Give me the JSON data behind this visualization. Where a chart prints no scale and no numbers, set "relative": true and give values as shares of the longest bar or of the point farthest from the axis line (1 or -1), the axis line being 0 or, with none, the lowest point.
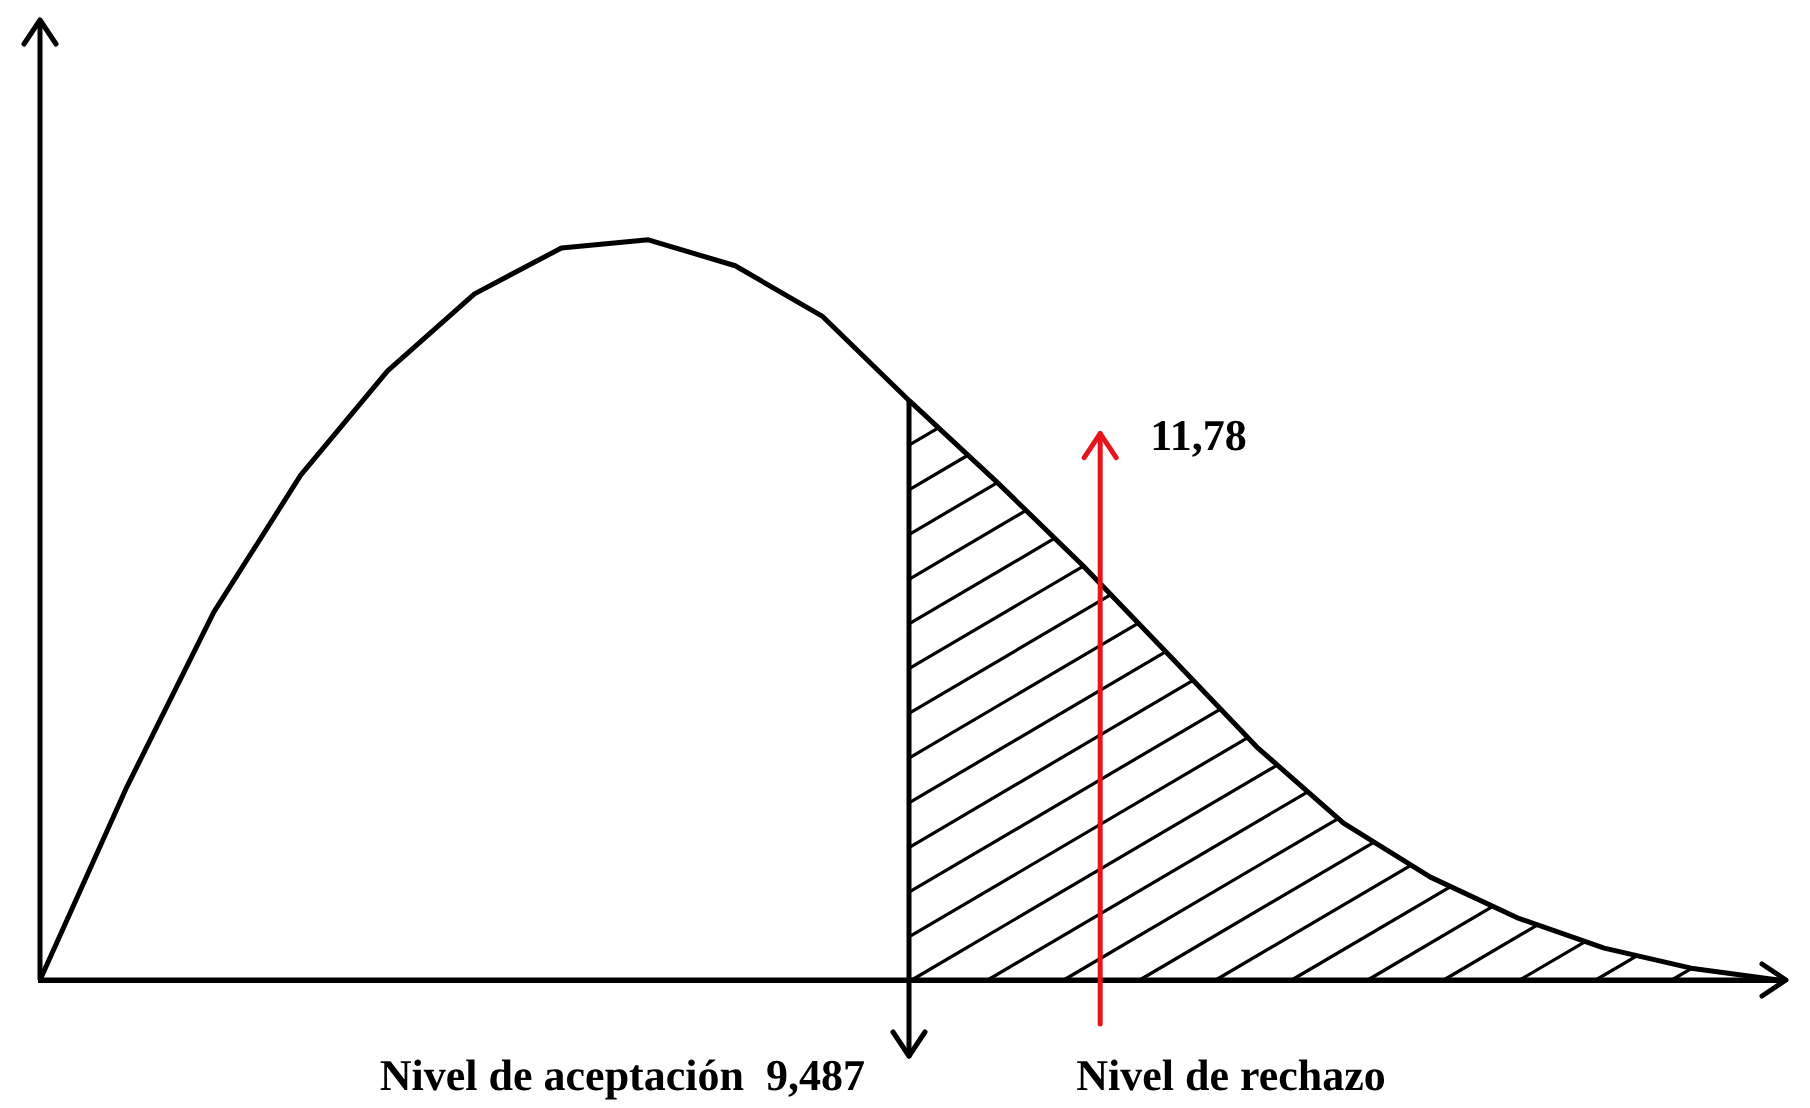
{
  "chart_data": {
    "type": "line",
    "relative": true,
    "tick_labels": false,
    "grid": false,
    "legend": false,
    "marker": "none",
    "line_style": "solid",
    "categories": [
      null,
      null,
      null,
      null,
      null,
      null,
      null,
      null,
      null,
      null,
      null,
      null,
      null,
      null,
      null,
      null,
      null,
      null,
      null,
      null,
      null
    ],
    "series": [
      {
        "color": "#000000",
        "values": [
          0,
          0.261,
          0.497,
          0.682,
          0.823,
          0.927,
          0.989,
          1,
          0.965,
          0.897,
          0.783,
          0.674,
          0.56,
          0.438,
          0.315,
          0.212,
          0.139,
          0.084,
          0.043,
          0.016,
          0
        ]
      }
    ],
    "annotations": [
      "Nivel de aceptación  9,487",
      "11,78",
      "Nivel de rechazo"
    ]
  }
}
